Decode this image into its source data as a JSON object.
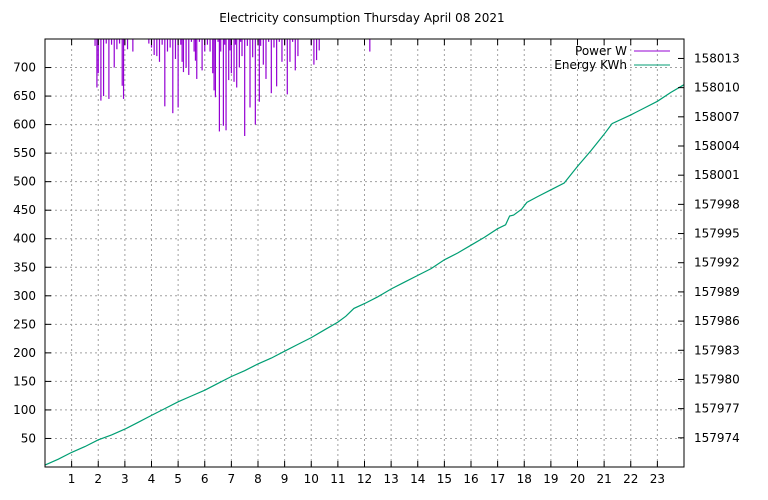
{
  "chart_data": {
    "type": "line",
    "title": "Electricity consumption Thursday April 08 2021",
    "xlim": [
      0,
      24
    ],
    "x_ticks": [
      "1",
      "2",
      "3",
      "4",
      "5",
      "6",
      "7",
      "8",
      "9",
      "10",
      "11",
      "12",
      "13",
      "14",
      "15",
      "16",
      "17",
      "18",
      "19",
      "20",
      "21",
      "22",
      "23"
    ],
    "y_left": {
      "lim": [
        0,
        750
      ],
      "ticks": [
        "50",
        "100",
        "150",
        "200",
        "250",
        "300",
        "350",
        "400",
        "450",
        "500",
        "550",
        "600",
        "650",
        "700"
      ]
    },
    "y_right": {
      "lim": [
        157971,
        158015
      ],
      "ticks": [
        "157974",
        "157977",
        "157980",
        "157983",
        "157986",
        "157989",
        "157992",
        "157995",
        "157998",
        "158001",
        "158004",
        "158007",
        "158010",
        "158013"
      ]
    },
    "grid": true,
    "legend_position": "top-right",
    "series": [
      {
        "name": "Power W",
        "axis": "left",
        "style": "impulses",
        "color": "#9400d3",
        "x": [
          1.88,
          1.95,
          2.0,
          2.1,
          2.2,
          2.3,
          2.4,
          2.5,
          2.6,
          2.7,
          2.8,
          2.9,
          2.95,
          3.0,
          3.1,
          3.3,
          3.9,
          4.0,
          4.1,
          4.2,
          4.3,
          4.4,
          4.5,
          4.6,
          4.7,
          4.8,
          4.9,
          5.0,
          5.1,
          5.15,
          5.2,
          5.3,
          5.4,
          5.5,
          5.6,
          5.65,
          5.7,
          5.8,
          5.9,
          6.0,
          6.1,
          6.2,
          6.3,
          6.35,
          6.4,
          6.5,
          6.55,
          6.6,
          6.7,
          6.75,
          6.8,
          6.9,
          6.95,
          7.0,
          7.1,
          7.15,
          7.2,
          7.3,
          7.35,
          7.4,
          7.5,
          7.6,
          7.7,
          7.8,
          7.9,
          8.0,
          8.05,
          8.1,
          8.2,
          8.3,
          8.4,
          8.5,
          8.6,
          8.7,
          8.8,
          8.9,
          9.0,
          9.1,
          9.2,
          9.3,
          9.4,
          9.5,
          10.0,
          10.1,
          10.2,
          10.3,
          12.2
        ],
        "values": [
          738,
          665,
          690,
          642,
          650,
          742,
          645,
          740,
          700,
          732,
          742,
          668,
          645,
          740,
          732,
          728,
          742,
          735,
          722,
          720,
          710,
          740,
          632,
          728,
          735,
          620,
          715,
          630,
          740,
          710,
          692,
          700,
          687,
          745,
          728,
          712,
          680,
          745,
          695,
          728,
          740,
          728,
          690,
          660,
          648,
          745,
          588,
          728,
          598,
          740,
          590,
          678,
          730,
          690,
          675,
          740,
          665,
          700,
          745,
          720,
          580,
          738,
          630,
          718,
          600,
          745,
          640,
          738,
          705,
          680,
          745,
          655,
          735,
          667,
          745,
          710,
          740,
          653,
          710,
          745,
          695,
          720,
          740,
          705,
          713,
          730,
          728
        ]
      },
      {
        "name": "Energy KWh",
        "axis": "right",
        "style": "line",
        "color": "#009e73",
        "x": [
          0,
          0.5,
          1,
          1.5,
          2,
          2.5,
          3,
          3.5,
          4,
          4.5,
          5,
          5.5,
          6,
          6.5,
          7,
          7.5,
          8,
          8.5,
          9,
          9.5,
          10,
          10.5,
          11,
          11.3,
          11.6,
          12,
          12.5,
          13,
          13.5,
          14,
          14.5,
          15,
          15.5,
          16,
          16.5,
          17,
          17.3,
          17.45,
          17.6,
          17.9,
          18.1,
          18.5,
          19,
          19.5,
          20,
          20.5,
          21,
          21.3,
          22,
          22.5,
          23,
          23.5,
          24
        ],
        "values": [
          157971.2,
          157971.8,
          157972.5,
          157973.1,
          157973.8,
          157974.3,
          157974.9,
          157975.6,
          157976.3,
          157977.0,
          157977.7,
          157978.3,
          157978.9,
          157979.6,
          157980.3,
          157980.9,
          157981.6,
          157982.2,
          157982.9,
          157983.6,
          157984.3,
          157985.1,
          157985.9,
          157986.5,
          157987.3,
          157987.8,
          157988.5,
          157989.3,
          157990.0,
          157990.7,
          157991.4,
          157992.3,
          157993.0,
          157993.8,
          157994.6,
          157995.5,
          157995.9,
          157996.8,
          157996.9,
          157997.5,
          157998.2,
          157998.8,
          157999.5,
          158000.2,
          158001.9,
          158003.5,
          158005.2,
          158006.3,
          158007.2,
          158007.9,
          158008.6,
          158009.5,
          158010.3
        ]
      }
    ]
  }
}
